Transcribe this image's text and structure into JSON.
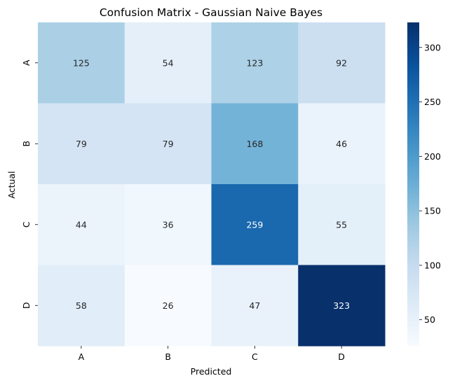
{
  "chart_data": {
    "type": "heatmap",
    "title": "Confusion Matrix - Gaussian Naive Bayes",
    "xlabel": "Predicted",
    "ylabel": "Actual",
    "x_categories": [
      "A",
      "B",
      "C",
      "D"
    ],
    "y_categories": [
      "A",
      "B",
      "C",
      "D"
    ],
    "values": [
      [
        125,
        54,
        123,
        92
      ],
      [
        79,
        79,
        168,
        46
      ],
      [
        44,
        36,
        259,
        55
      ],
      [
        58,
        26,
        47,
        323
      ]
    ],
    "colormap": "Blues",
    "color_range": [
      26,
      323
    ],
    "colorbar": {
      "ticks": [
        50,
        100,
        150,
        200,
        250,
        300
      ]
    },
    "grid": false
  }
}
